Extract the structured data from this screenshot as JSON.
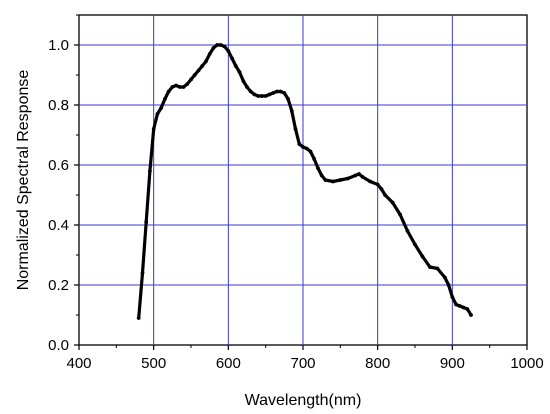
{
  "chart_data": {
    "type": "line",
    "title": "",
    "xlabel": "Wavelength(nm)",
    "ylabel": "Normalized Spectral Response",
    "xlim": [
      400,
      1000
    ],
    "ylim": [
      0.0,
      1.1
    ],
    "xticks": [
      400,
      500,
      600,
      700,
      800,
      900,
      1000
    ],
    "yticks": [
      0.0,
      0.2,
      0.4,
      0.6,
      0.8,
      1.0
    ],
    "x_tick_labels": [
      "400",
      "500",
      "600",
      "700",
      "800",
      "900",
      "1000"
    ],
    "y_tick_labels": [
      "0.0",
      "0.2",
      "0.4",
      "0.6",
      "0.8",
      "1.0"
    ],
    "grid": true,
    "legend": "none",
    "colors": {
      "grid": "#3a3ad6",
      "line": "#000000",
      "axis": "#000000"
    },
    "series": [
      {
        "x": [
          480,
          485,
          490,
          495,
          500,
          505,
          510,
          515,
          520,
          525,
          530,
          535,
          540,
          545,
          550,
          555,
          560,
          565,
          570,
          575,
          580,
          585,
          590,
          595,
          600,
          605,
          610,
          615,
          620,
          625,
          630,
          635,
          640,
          645,
          650,
          655,
          660,
          665,
          670,
          675,
          680,
          685,
          690,
          695,
          700,
          705,
          710,
          715,
          720,
          725,
          730,
          740,
          750,
          760,
          770,
          775,
          780,
          790,
          800,
          805,
          810,
          820,
          830,
          840,
          850,
          860,
          870,
          880,
          890,
          895,
          900,
          905,
          910,
          915,
          920,
          925
        ],
        "values": [
          0.09,
          0.24,
          0.41,
          0.58,
          0.72,
          0.77,
          0.79,
          0.82,
          0.845,
          0.86,
          0.865,
          0.86,
          0.86,
          0.87,
          0.885,
          0.9,
          0.915,
          0.93,
          0.945,
          0.97,
          0.99,
          1.0,
          1.0,
          0.995,
          0.98,
          0.955,
          0.93,
          0.91,
          0.88,
          0.86,
          0.845,
          0.835,
          0.83,
          0.83,
          0.83,
          0.835,
          0.84,
          0.845,
          0.845,
          0.84,
          0.82,
          0.78,
          0.72,
          0.67,
          0.66,
          0.655,
          0.645,
          0.62,
          0.59,
          0.565,
          0.55,
          0.545,
          0.55,
          0.555,
          0.565,
          0.57,
          0.56,
          0.545,
          0.535,
          0.52,
          0.5,
          0.475,
          0.435,
          0.38,
          0.335,
          0.295,
          0.26,
          0.255,
          0.225,
          0.2,
          0.16,
          0.135,
          0.13,
          0.125,
          0.12,
          0.1
        ]
      }
    ]
  }
}
